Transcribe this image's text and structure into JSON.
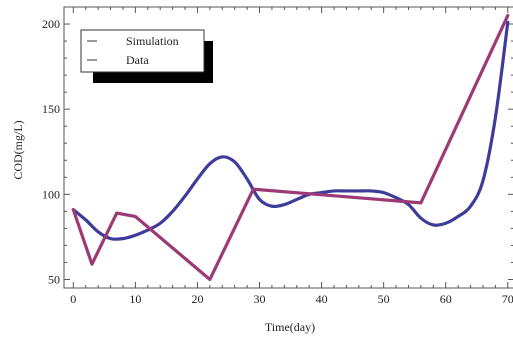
{
  "chart_data": {
    "type": "line",
    "title": "",
    "xlabel": "Time(day)",
    "ylabel": "COD(mg/L)",
    "xlim": [
      -1.5,
      71
    ],
    "ylim": [
      45,
      210
    ],
    "xticks": [
      0,
      10,
      20,
      30,
      40,
      50,
      60,
      70
    ],
    "yticks": [
      50,
      100,
      150,
      200
    ],
    "grid": false,
    "legend_position": "top-left",
    "series": [
      {
        "name": "Simulation",
        "color": "#3d3d99",
        "x": [
          0,
          2,
          4,
          6,
          8,
          10,
          12,
          14,
          16,
          18,
          20,
          22,
          24,
          26,
          28,
          30,
          32,
          34,
          36,
          38,
          40,
          42,
          44,
          46,
          48,
          50,
          52,
          54,
          56,
          58,
          60,
          62,
          64,
          66,
          68,
          70
        ],
        "y": [
          91,
          85,
          78,
          74,
          74,
          76,
          79,
          83,
          90,
          99,
          109,
          118,
          122,
          119,
          109,
          97,
          93,
          94,
          97,
          100,
          101,
          102,
          102,
          102,
          102,
          101,
          98,
          94,
          86,
          82,
          83,
          87,
          93,
          108,
          145,
          201
        ]
      },
      {
        "name": "Data",
        "color": "#9b3a74",
        "x": [
          0,
          3,
          7,
          10,
          22,
          29,
          56,
          70
        ],
        "y": [
          91,
          59,
          89,
          87,
          50,
          103,
          95,
          205
        ]
      }
    ]
  }
}
